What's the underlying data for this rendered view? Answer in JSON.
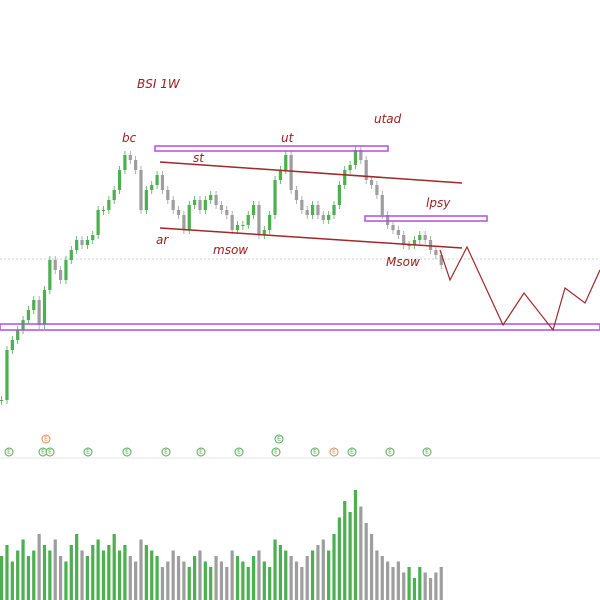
{
  "chart_data": {
    "type": "candlestick",
    "title": "BSI 1W",
    "annotations": [
      "bc",
      "st",
      "ar",
      "msow",
      "ut",
      "utad",
      "lpsy",
      "Msow"
    ],
    "close": [
      60,
      110,
      120,
      130,
      140,
      150,
      160,
      135,
      170,
      200,
      190,
      180,
      200,
      210,
      220,
      215,
      220,
      225,
      250,
      250,
      260,
      270,
      290,
      305,
      300,
      290,
      250,
      270,
      275,
      285,
      270,
      260,
      250,
      245,
      230,
      255,
      260,
      250,
      260,
      265,
      255,
      250,
      245,
      230,
      235,
      235,
      245,
      255,
      225,
      230,
      245,
      280,
      290,
      305,
      270,
      260,
      250,
      245,
      255,
      245,
      240,
      245,
      255,
      275,
      290,
      295,
      310,
      300,
      280,
      275,
      265,
      245,
      235,
      230,
      225,
      215,
      215,
      220,
      225,
      220,
      210,
      205,
      195
    ],
    "ylim": [
      0,
      460
    ],
    "volume": [
      40,
      50,
      35,
      45,
      55,
      40,
      45,
      60,
      50,
      45,
      55,
      40,
      35,
      50,
      60,
      45,
      40,
      50,
      55,
      45,
      50,
      60,
      45,
      50,
      40,
      35,
      55,
      50,
      45,
      40,
      30,
      35,
      45,
      40,
      35,
      30,
      40,
      45,
      35,
      30,
      40,
      35,
      30,
      45,
      40,
      35,
      30,
      40,
      45,
      35,
      30,
      55,
      50,
      45,
      40,
      35,
      30,
      40,
      45,
      50,
      55,
      45,
      60,
      75,
      90,
      80,
      100,
      85,
      70,
      60,
      45,
      40,
      35,
      30,
      35,
      25,
      30,
      20,
      30,
      25,
      20,
      25,
      30
    ],
    "vlim": [
      0,
      100
    ],
    "events": [
      "E",
      "E",
      "E",
      "E",
      "E",
      "E",
      "E",
      "E",
      "E",
      "E",
      "E",
      "E",
      "E",
      "E",
      "E",
      "E"
    ],
    "up_color": "#4caf50",
    "down_color": "#9e9e9e"
  }
}
